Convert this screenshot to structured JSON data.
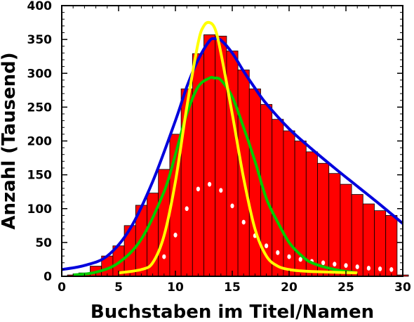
{
  "chart_data": {
    "type": "bar",
    "xlabel": "Buchstaben im Titel/Namen",
    "ylabel": "Anzahl (Tausend)",
    "xlim": [
      0,
      30
    ],
    "ylim": [
      0,
      400
    ],
    "x_ticks": [
      0,
      5,
      10,
      15,
      20,
      25,
      30
    ],
    "y_ticks": [
      0,
      50,
      100,
      150,
      200,
      250,
      300,
      350,
      400
    ],
    "grid": false,
    "legend": "none",
    "bars": {
      "color": "#ff0000",
      "categories": [
        1,
        2,
        3,
        4,
        5,
        6,
        7,
        8,
        9,
        10,
        11,
        12,
        13,
        14,
        15,
        16,
        17,
        18,
        19,
        20,
        21,
        22,
        23,
        24,
        25,
        26,
        27,
        28,
        29,
        30
      ],
      "values": [
        2,
        5,
        15,
        30,
        45,
        75,
        105,
        123,
        158,
        210,
        277,
        329,
        357,
        355,
        333,
        305,
        277,
        254,
        232,
        215,
        200,
        184,
        167,
        152,
        136,
        121,
        107,
        97,
        90,
        2
      ]
    },
    "series": [
      {
        "type": "dots",
        "color": "#ffffff",
        "x": [
          9,
          10,
          11,
          12,
          13,
          14,
          15,
          16,
          17,
          18,
          19,
          20,
          21,
          22,
          23,
          24,
          25,
          26,
          27,
          28,
          29
        ],
        "y": [
          29,
          61,
          100,
          129,
          136,
          127,
          104,
          80,
          60,
          45,
          35,
          29,
          25,
          22,
          20,
          18,
          16,
          14,
          12,
          11,
          10
        ]
      },
      {
        "type": "line",
        "color": "#0000dd",
        "x": [
          0,
          2,
          4,
          6,
          8,
          10,
          11,
          12,
          13,
          13.5,
          14,
          15,
          16,
          17,
          18,
          20,
          22,
          24,
          26,
          28,
          30
        ],
        "y": [
          10,
          16,
          30,
          70,
          140,
          230,
          280,
          320,
          348,
          351,
          349,
          330,
          303,
          278,
          255,
          218,
          188,
          160,
          133,
          106,
          78
        ]
      },
      {
        "type": "line",
        "color": "#00cc00",
        "x": [
          1,
          3,
          5,
          7,
          9,
          10,
          11,
          12,
          13,
          13.4,
          14,
          15,
          16,
          17,
          18,
          19,
          20,
          21,
          22,
          24,
          26
        ],
        "y": [
          2,
          6,
          20,
          55,
          125,
          180,
          240,
          280,
          293,
          293,
          290,
          265,
          220,
          170,
          115,
          80,
          50,
          32,
          20,
          10,
          5
        ]
      },
      {
        "type": "line",
        "color": "#ffff00",
        "x": [
          5,
          7,
          8,
          9,
          10,
          11,
          12,
          12.5,
          13,
          13.5,
          14,
          15,
          16,
          17,
          18,
          19,
          20,
          21,
          22,
          24,
          26
        ],
        "y": [
          5,
          10,
          20,
          60,
          140,
          250,
          345,
          370,
          375,
          365,
          330,
          240,
          145,
          70,
          30,
          15,
          10,
          8,
          7,
          6,
          5
        ]
      }
    ]
  }
}
